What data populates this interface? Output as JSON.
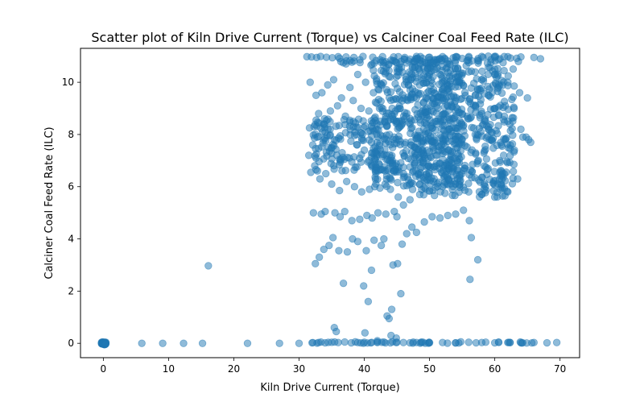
{
  "chart_data": {
    "type": "scatter",
    "title": "Scatter plot of Kiln Drive Current (Torque) vs Calciner Coal Feed Rate (ILC)",
    "xlabel": "Kiln Drive Current (Torque)",
    "ylabel": "Calciner Coal Feed Rate (ILC)",
    "xlim": [
      -3.5,
      73
    ],
    "ylim": [
      -0.55,
      11.3
    ],
    "xticks": [
      0,
      10,
      20,
      30,
      40,
      50,
      60,
      70
    ],
    "yticks": [
      0,
      2,
      4,
      6,
      8,
      10
    ],
    "grid": false,
    "legend": "none",
    "colors": {
      "marker": "#1f77b4",
      "marker_alpha": 0.5
    },
    "series": [
      {
        "x": [
          0,
          0,
          0,
          0.1,
          0.2,
          0.3,
          5.9,
          9.1,
          12.3,
          15.2,
          22.1,
          27.0,
          30.0,
          16.1,
          32.0,
          33.0,
          34.0,
          35.0,
          36.0,
          37.0,
          38.0,
          39.0,
          40.0,
          41.0,
          42.0,
          43.0,
          44.0,
          45.0,
          46.0,
          47.0,
          48.0,
          49.0,
          50.0,
          52.0,
          54.0,
          56.0,
          58.0,
          60.0,
          62.0,
          64.0,
          66.0,
          68.0,
          69.5,
          35.4,
          36.8,
          39.9,
          40.1,
          40.6,
          41.1,
          42.0,
          43.5,
          44.2,
          44.9,
          45.6,
          43.8,
          44.1,
          35.7,
          56.2,
          57.4,
          32.5,
          33.1,
          33.8,
          34.6,
          35.2,
          36.1,
          37.4,
          38.2,
          39.0,
          40.3,
          41.5,
          42.6,
          43.0,
          44.4,
          45.1,
          45.8,
          46.5,
          47.3,
          48.0,
          49.2,
          50.4,
          51.6,
          52.8,
          54.0,
          55.2,
          56.1,
          56.4,
          32.2,
          33.4,
          34.0,
          35.5,
          36.3,
          37.0,
          38.1,
          39.3,
          40.4,
          41.2,
          42.1,
          43.3,
          44.6,
          45.0,
          31.8,
          32.4,
          33.2,
          34.1,
          35.0,
          36.2,
          37.3,
          38.5,
          39.6,
          40.8,
          41.6,
          42.4,
          43.2,
          44.0,
          45.2,
          46.0,
          47.0,
          48.5,
          50.0,
          52.0,
          54.0,
          56.0,
          58.0,
          60.0,
          62.0,
          63.5,
          64.3,
          31.5,
          32.1,
          32.8,
          33.6,
          34.5,
          35.4,
          36.6,
          37.7,
          38.9,
          40.0,
          41.1,
          42.2,
          43.4,
          44.7,
          46.0,
          47.5,
          49.0,
          51.0,
          53.0,
          55.0,
          57.0,
          59.0,
          61.0,
          63.0,
          64.8,
          65.5,
          31.6,
          32.3,
          33.0,
          33.9,
          34.8,
          35.9,
          37.1,
          38.3,
          39.5,
          40.7,
          41.9,
          43.1,
          44.3,
          45.5,
          47.0,
          48.6,
          50.2,
          52.0,
          54.0,
          56.0,
          58.0,
          60.0,
          62.0,
          64.0,
          65.2,
          31.7,
          32.6,
          33.5,
          34.4,
          35.3,
          36.5,
          37.8,
          39.0,
          40.2,
          41.4,
          42.7,
          44.0,
          45.3,
          46.8,
          48.4,
          50.0,
          52.0,
          54.0,
          56.0,
          58.0,
          60.0,
          62.0,
          63.8,
          65.0,
          31.2,
          31.9,
          32.7,
          33.3,
          34.2,
          35.1,
          36.0,
          37.2,
          38.4,
          39.8,
          41.3,
          42.8,
          44.5,
          46.2,
          48.0,
          50.0,
          52.0,
          54.0,
          56.0,
          58.0,
          60.0,
          62.0,
          64.0,
          66.0,
          67.0
        ],
        "y": [
          0,
          0,
          0,
          0,
          0,
          0,
          0,
          0,
          0,
          0,
          0,
          0,
          0,
          2.97,
          0.02,
          0.03,
          0.02,
          0.04,
          0.03,
          0.05,
          0.02,
          0.03,
          0.04,
          0.02,
          0.03,
          0.05,
          0.02,
          0.04,
          0.03,
          0.02,
          0.03,
          0.04,
          0.02,
          0.03,
          0.02,
          0.04,
          0.03,
          0.02,
          0.03,
          0.02,
          0.03,
          0.02,
          0.03,
          0.6,
          2.3,
          2.2,
          0.4,
          1.6,
          2.8,
          0.1,
          1.05,
          1.3,
          0.2,
          1.9,
          0.95,
          0.3,
          0.45,
          2.45,
          3.2,
          3.05,
          3.3,
          3.6,
          3.75,
          4.05,
          3.55,
          3.5,
          4.0,
          3.9,
          3.55,
          3.95,
          3.75,
          4.0,
          3.0,
          3.05,
          3.8,
          4.2,
          4.45,
          4.25,
          4.65,
          4.85,
          4.8,
          4.9,
          4.95,
          5.1,
          4.7,
          4.05,
          5.0,
          4.95,
          5.05,
          5.0,
          4.85,
          5.05,
          4.7,
          4.75,
          4.9,
          4.8,
          5.0,
          4.95,
          5.05,
          4.85,
          6.55,
          6.8,
          6.3,
          6.5,
          6.1,
          5.85,
          6.2,
          6.0,
          5.8,
          5.9,
          6.0,
          5.95,
          6.1,
          5.9,
          5.6,
          5.3,
          5.5,
          5.7,
          5.85,
          6.0,
          6.1,
          5.8,
          5.7,
          5.6,
          5.8,
          6.3,
          7.9,
          7.2,
          7.6,
          7.9,
          8.1,
          7.5,
          7.8,
          7.3,
          7.1,
          7.6,
          7.4,
          7.7,
          6.9,
          7.2,
          6.8,
          6.5,
          6.6,
          7.0,
          7.2,
          7.4,
          7.8,
          8.0,
          8.2,
          7.6,
          7.4,
          7.9,
          7.7,
          8.25,
          8.3,
          8.8,
          8.6,
          8.9,
          9.1,
          8.7,
          9.3,
          9.0,
          8.9,
          9.2,
          8.5,
          8.7,
          9.0,
          8.4,
          8.8,
          9.1,
          9.3,
          8.9,
          8.6,
          8.8,
          9.0,
          8.5,
          8.2,
          7.8,
          10.0,
          9.5,
          9.6,
          9.9,
          10.1,
          9.4,
          9.8,
          10.3,
          10.0,
          9.6,
          9.9,
          10.2,
          10.4,
          10.1,
          10.5,
          10.3,
          10.6,
          10.2,
          10.4,
          10.1,
          10.5,
          10.0,
          9.6,
          9.4,
          10.98,
          10.97,
          10.95,
          10.99,
          10.96,
          10.94,
          10.98,
          10.97,
          10.95,
          10.99,
          10.96,
          10.98,
          10.97,
          10.95,
          10.99,
          10.96,
          10.98,
          10.97,
          10.95,
          10.99,
          10.96,
          10.98,
          10.97,
          10.95,
          10.9
        ]
      }
    ],
    "dense_regions": [
      {
        "x_range": [
          47,
          63
        ],
        "y_range": [
          5.6,
          11.0
        ]
      },
      {
        "x_range": [
          41,
          55
        ],
        "y_range": [
          6.0,
          10.9
        ]
      },
      {
        "x_range": [
          32,
          46
        ],
        "y_range": [
          6.6,
          8.6
        ]
      },
      {
        "x_range": [
          36,
          64
        ],
        "y_range": [
          10.7,
          11.0
        ]
      },
      {
        "x_range": [
          32,
          69
        ],
        "y_range": [
          0,
          0.06
        ]
      },
      {
        "x_range": [
          -0.3,
          0.4
        ],
        "y_range": [
          -0.05,
          0.05
        ]
      }
    ]
  }
}
